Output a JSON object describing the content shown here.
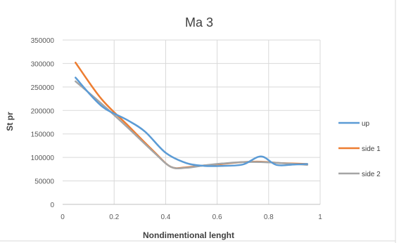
{
  "chart_data": {
    "type": "line",
    "title": "Ma 3",
    "xlabel": "Nondimentional lenght",
    "ylabel": "St  pr",
    "xlim": [
      0,
      1
    ],
    "ylim": [
      0,
      350000
    ],
    "x_ticks": [
      0,
      0.2,
      0.4,
      0.6,
      0.8,
      1
    ],
    "x_tick_labels": [
      "0",
      "0.2",
      "0.4",
      "0.6",
      "0.8",
      "1"
    ],
    "y_ticks": [
      0,
      50000,
      100000,
      150000,
      200000,
      250000,
      300000,
      350000
    ],
    "y_tick_labels": [
      "0",
      "50000",
      "100000",
      "150000",
      "200000",
      "250000",
      "300000",
      "350000"
    ],
    "grid": "horizontal",
    "legend_position": "right",
    "series": [
      {
        "name": "up",
        "color": "#5b9bd5",
        "x": [
          0.05,
          0.15,
          0.25,
          0.32,
          0.4,
          0.48,
          0.55,
          0.62,
          0.7,
          0.77,
          0.83,
          0.9,
          0.95
        ],
        "y": [
          270000,
          210000,
          180000,
          155000,
          110000,
          88000,
          82000,
          82000,
          85000,
          102000,
          84000,
          85000,
          86000
        ]
      },
      {
        "name": "side 1",
        "color": "#ed7d31",
        "x": [
          0.05,
          0.15,
          0.25,
          0.35,
          0.42,
          0.48,
          0.55,
          0.62,
          0.7,
          0.77,
          0.85,
          0.95
        ],
        "y": [
          302000,
          225000,
          170000,
          115000,
          80000,
          79000,
          83000,
          86000,
          90000,
          91000,
          88000,
          86000
        ]
      },
      {
        "name": "side 2",
        "color": "#a5a5a5",
        "x": [
          0.05,
          0.15,
          0.25,
          0.35,
          0.42,
          0.48,
          0.55,
          0.62,
          0.7,
          0.77,
          0.85,
          0.95
        ],
        "y": [
          262000,
          215000,
          165000,
          113000,
          80000,
          78000,
          83000,
          87000,
          90000,
          90000,
          88000,
          84000
        ]
      }
    ]
  }
}
